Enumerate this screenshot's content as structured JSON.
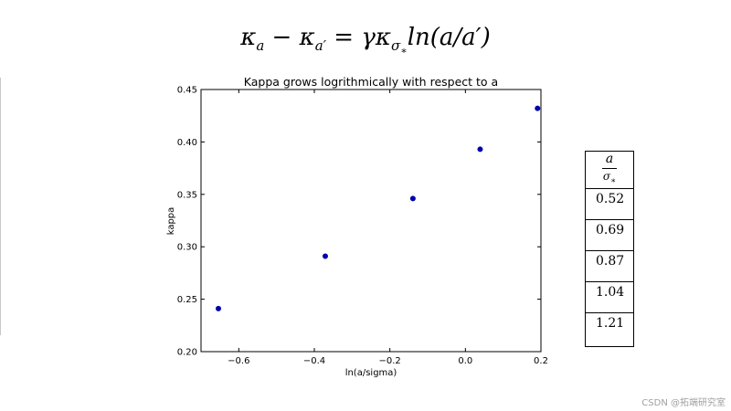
{
  "formula": {
    "kappa": "κ",
    "sub_a": "a",
    "minus": " − ",
    "sub_a_prime": "a′",
    "equals": " = ",
    "gamma_kappa": "γκ",
    "sub_sigma": "σ",
    "sub_star": "∗",
    "rhs": "ln(a/a′)"
  },
  "chart_data": {
    "type": "scatter",
    "title": "Kappa grows logrithmically with respect to a",
    "xlabel": "ln(a/sigma)",
    "ylabel": "kappa",
    "xlim": [
      -0.7,
      0.2
    ],
    "ylim": [
      0.2,
      0.45
    ],
    "x_ticks": [
      -0.6,
      -0.4,
      -0.2,
      0.0,
      0.2
    ],
    "x_tick_labels": [
      "−0.6",
      "−0.4",
      "−0.2",
      "0.0",
      "0.2"
    ],
    "y_ticks": [
      0.2,
      0.25,
      0.3,
      0.35,
      0.4,
      0.45
    ],
    "y_tick_labels": [
      "0.20",
      "0.25",
      "0.30",
      "0.35",
      "0.40",
      "0.45"
    ],
    "grid": false,
    "point_color": "#0000aa",
    "x": [
      -0.654,
      -0.371,
      -0.139,
      0.039,
      0.191
    ],
    "y": [
      0.241,
      0.291,
      0.346,
      0.393,
      0.432
    ]
  },
  "ratio_table": {
    "header_num": "a",
    "header_den": "σ",
    "header_den_sub": "∗",
    "values": [
      "0.52",
      "0.69",
      "0.87",
      "1.04",
      "1.21"
    ]
  },
  "watermark": "CSDN @拓端研究室"
}
